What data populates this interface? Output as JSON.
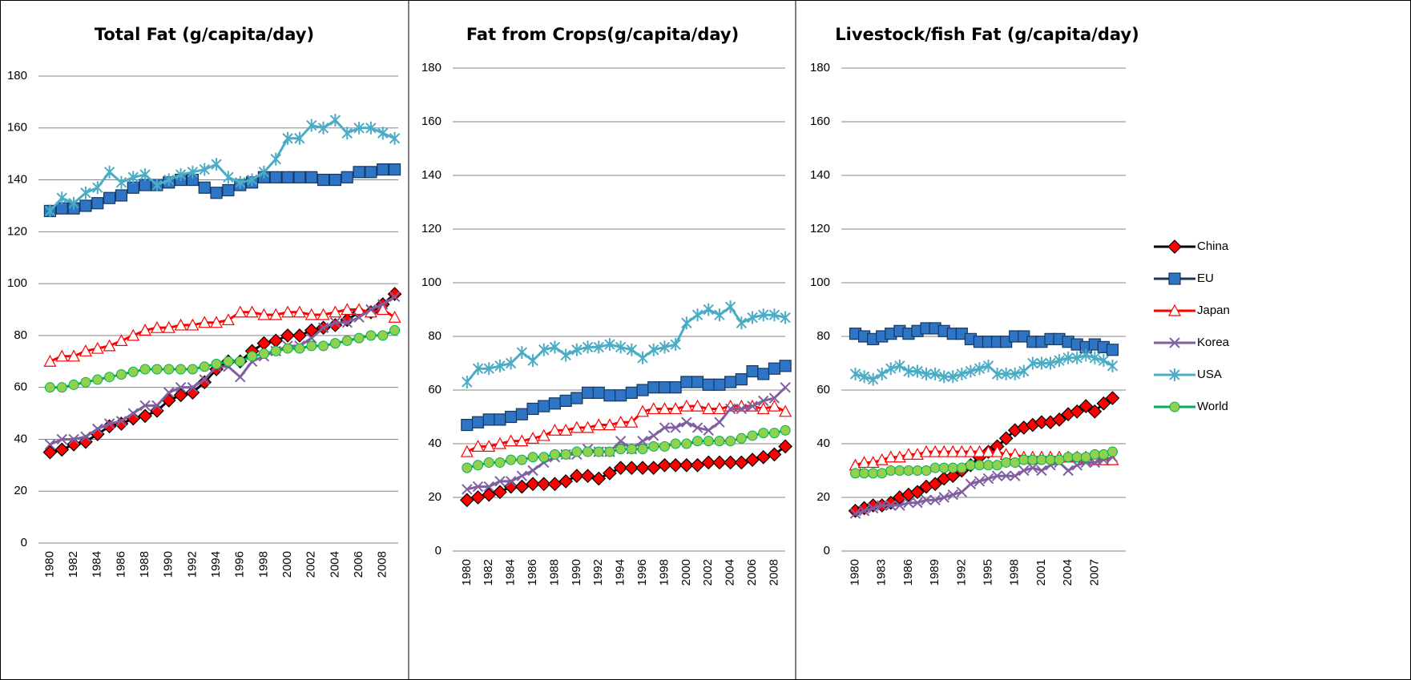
{
  "chart_data": [
    {
      "type": "line",
      "title": "Total Fat (g/capita/day)",
      "categories": [
        "1980",
        null,
        "1982",
        null,
        "1984",
        null,
        "1986",
        null,
        "1988",
        null,
        "1990",
        null,
        "1992",
        null,
        "1994",
        null,
        "1996",
        null,
        "1998",
        null,
        "2000",
        null,
        "2002",
        null,
        "2004",
        null,
        "2006",
        null,
        "2008",
        null
      ],
      "ylim": [
        0,
        180
      ],
      "yticks": [
        0,
        20,
        40,
        60,
        80,
        100,
        120,
        140,
        160,
        180
      ],
      "grid": true,
      "series": [
        {
          "color": "#000000",
          "marker": "diamond",
          "marker_fill": "#ff0000",
          "values": [
            35,
            36,
            38,
            39,
            42,
            45,
            46,
            48,
            49,
            51,
            55,
            57,
            58,
            62,
            67,
            70,
            70,
            74,
            77,
            78,
            80,
            80,
            82,
            83,
            84,
            86,
            89,
            89,
            92,
            96
          ]
        },
        {
          "color": "#17375e",
          "marker": "square",
          "marker_fill": "#2e75c6",
          "values": [
            128,
            129,
            129,
            130,
            131,
            133,
            134,
            137,
            138,
            138,
            139,
            140,
            140,
            137,
            135,
            136,
            138,
            139,
            141,
            141,
            141,
            141,
            141,
            140,
            140,
            141,
            143,
            143,
            144,
            144
          ]
        },
        {
          "color": "#ff0000",
          "marker": "triangle",
          "marker_fill": "#ffffff",
          "values": [
            70,
            72,
            72,
            74,
            75,
            76,
            78,
            80,
            82,
            83,
            83,
            84,
            84,
            85,
            85,
            86,
            89,
            89,
            88,
            88,
            89,
            89,
            88,
            88,
            89,
            90,
            90,
            89,
            90,
            87
          ]
        },
        {
          "color": "#7f5fa0",
          "marker": "x",
          "marker_fill": "#7f5fa0",
          "values": [
            38,
            40,
            40,
            41,
            44,
            46,
            47,
            50,
            53,
            53,
            58,
            60,
            60,
            63,
            68,
            68,
            64,
            70,
            72,
            74,
            76,
            76,
            79,
            83,
            85,
            85,
            87,
            90,
            92,
            95
          ]
        },
        {
          "color": "#4bacc6",
          "marker": "asterisk",
          "marker_fill": "#4bacc6",
          "values": [
            128,
            133,
            131,
            135,
            137,
            143,
            139,
            141,
            142,
            138,
            140,
            142,
            143,
            144,
            146,
            141,
            139,
            140,
            143,
            148,
            156,
            156,
            161,
            160,
            163,
            158,
            160,
            160,
            158,
            156
          ]
        },
        {
          "color": "#00b050",
          "marker": "circle",
          "marker_fill": "#92d050",
          "values": [
            60,
            60,
            61,
            62,
            63,
            64,
            65,
            66,
            67,
            67,
            67,
            67,
            67,
            68,
            69,
            70,
            70,
            72,
            73,
            74,
            75,
            75,
            76,
            76,
            77,
            78,
            79,
            80,
            80,
            82
          ]
        }
      ]
    },
    {
      "type": "line",
      "title": "Fat from Crops(g/capita/day)",
      "categories": [
        "1980",
        null,
        "1982",
        null,
        "1984",
        null,
        "1986",
        null,
        "1988",
        null,
        "1990",
        null,
        "1992",
        null,
        "1994",
        null,
        "1996",
        null,
        "1998",
        null,
        "2000",
        null,
        "2002",
        null,
        "2004",
        null,
        "2006",
        null,
        "2008",
        null
      ],
      "ylim": [
        0,
        180
      ],
      "yticks": [
        0,
        20,
        40,
        60,
        80,
        100,
        120,
        140,
        160,
        180
      ],
      "grid": true,
      "series": [
        {
          "color": "#000000",
          "marker": "diamond",
          "marker_fill": "#ff0000",
          "values": [
            19,
            20,
            21,
            22,
            24,
            24,
            25,
            25,
            25,
            26,
            28,
            28,
            27,
            29,
            31,
            31,
            31,
            31,
            32,
            32,
            32,
            32,
            33,
            33,
            33,
            33,
            34,
            35,
            36,
            39
          ]
        },
        {
          "color": "#17375e",
          "marker": "square",
          "marker_fill": "#2e75c6",
          "values": [
            47,
            48,
            49,
            49,
            50,
            51,
            53,
            54,
            55,
            56,
            57,
            59,
            59,
            58,
            58,
            59,
            60,
            61,
            61,
            61,
            63,
            63,
            62,
            62,
            63,
            64,
            67,
            66,
            68,
            69
          ]
        },
        {
          "color": "#ff0000",
          "marker": "triangle",
          "marker_fill": "#ffffff",
          "values": [
            37,
            39,
            39,
            40,
            41,
            41,
            42,
            43,
            45,
            45,
            46,
            46,
            47,
            47,
            48,
            48,
            52,
            53,
            53,
            53,
            54,
            54,
            53,
            53,
            54,
            54,
            54,
            53,
            54,
            52
          ]
        },
        {
          "color": "#7f5fa0",
          "marker": "x",
          "marker_fill": "#7f5fa0",
          "values": [
            23,
            24,
            24,
            26,
            26,
            28,
            30,
            33,
            35,
            36,
            36,
            38,
            37,
            37,
            41,
            38,
            41,
            43,
            46,
            46,
            48,
            46,
            45,
            48,
            53,
            53,
            54,
            56,
            57,
            61
          ]
        },
        {
          "color": "#4bacc6",
          "marker": "asterisk",
          "marker_fill": "#4bacc6",
          "values": [
            63,
            68,
            68,
            69,
            70,
            74,
            71,
            75,
            76,
            73,
            75,
            76,
            76,
            77,
            76,
            75,
            72,
            75,
            76,
            77,
            85,
            88,
            90,
            88,
            91,
            85,
            87,
            88,
            88,
            87
          ]
        },
        {
          "color": "#00b050",
          "marker": "circle",
          "marker_fill": "#92d050",
          "values": [
            31,
            32,
            33,
            33,
            34,
            34,
            35,
            35,
            36,
            36,
            37,
            37,
            37,
            37,
            38,
            38,
            38,
            39,
            39,
            40,
            40,
            41,
            41,
            41,
            41,
            42,
            43,
            44,
            44,
            45
          ]
        }
      ]
    },
    {
      "type": "line",
      "title": "Livestock/fish Fat (g/capita/day)",
      "categories": [
        "1980",
        null,
        null,
        "1983",
        null,
        null,
        "1986",
        null,
        null,
        "1989",
        null,
        null,
        "1992",
        null,
        null,
        "1995",
        null,
        null,
        "1998",
        null,
        null,
        "2001",
        null,
        null,
        "2004",
        null,
        null,
        "2007",
        null,
        null
      ],
      "ylim": [
        0,
        180
      ],
      "yticks": [
        0,
        20,
        40,
        60,
        80,
        100,
        120,
        140,
        160,
        180
      ],
      "grid": true,
      "legend": "right",
      "series": [
        {
          "name": "China",
          "color": "#000000",
          "marker": "diamond",
          "marker_fill": "#ff0000",
          "values": [
            15,
            16,
            17,
            17,
            18,
            20,
            21,
            22,
            24,
            25,
            27,
            28,
            30,
            32,
            35,
            37,
            39,
            42,
            45,
            46,
            47,
            48,
            48,
            49,
            51,
            52,
            54,
            52,
            55,
            57
          ]
        },
        {
          "name": "EU",
          "color": "#17375e",
          "marker": "square",
          "marker_fill": "#2e75c6",
          "values": [
            81,
            80,
            79,
            80,
            81,
            82,
            81,
            82,
            83,
            83,
            82,
            81,
            81,
            79,
            78,
            78,
            78,
            78,
            80,
            80,
            78,
            78,
            79,
            79,
            78,
            77,
            76,
            77,
            76,
            75
          ]
        },
        {
          "name": "Japan",
          "color": "#ff0000",
          "marker": "triangle",
          "marker_fill": "#ffffff",
          "values": [
            32,
            33,
            33,
            34,
            35,
            35,
            36,
            36,
            37,
            37,
            37,
            37,
            37,
            37,
            37,
            37,
            37,
            36,
            36,
            35,
            35,
            35,
            35,
            35,
            35,
            35,
            35,
            34,
            34,
            34
          ]
        },
        {
          "name": "Korea",
          "color": "#7f5fa0",
          "marker": "x",
          "marker_fill": "#7f5fa0",
          "values": [
            14,
            15,
            16,
            17,
            17,
            17,
            18,
            18,
            19,
            19,
            20,
            21,
            22,
            25,
            26,
            27,
            28,
            28,
            28,
            30,
            31,
            30,
            32,
            33,
            30,
            32,
            33,
            33,
            34,
            35
          ]
        },
        {
          "name": "USA",
          "color": "#4bacc6",
          "marker": "asterisk",
          "marker_fill": "#4bacc6",
          "values": [
            66,
            65,
            64,
            66,
            68,
            69,
            67,
            67,
            66,
            66,
            65,
            65,
            66,
            67,
            68,
            69,
            66,
            66,
            66,
            67,
            70,
            70,
            70,
            71,
            72,
            72,
            73,
            72,
            71,
            69
          ]
        },
        {
          "name": "World",
          "color": "#00b050",
          "marker": "circle",
          "marker_fill": "#92d050",
          "values": [
            29,
            29,
            29,
            29,
            30,
            30,
            30,
            30,
            30,
            31,
            31,
            31,
            31,
            32,
            32,
            32,
            32,
            33,
            33,
            34,
            34,
            34,
            34,
            34,
            35,
            35,
            35,
            36,
            36,
            37
          ]
        }
      ]
    }
  ]
}
